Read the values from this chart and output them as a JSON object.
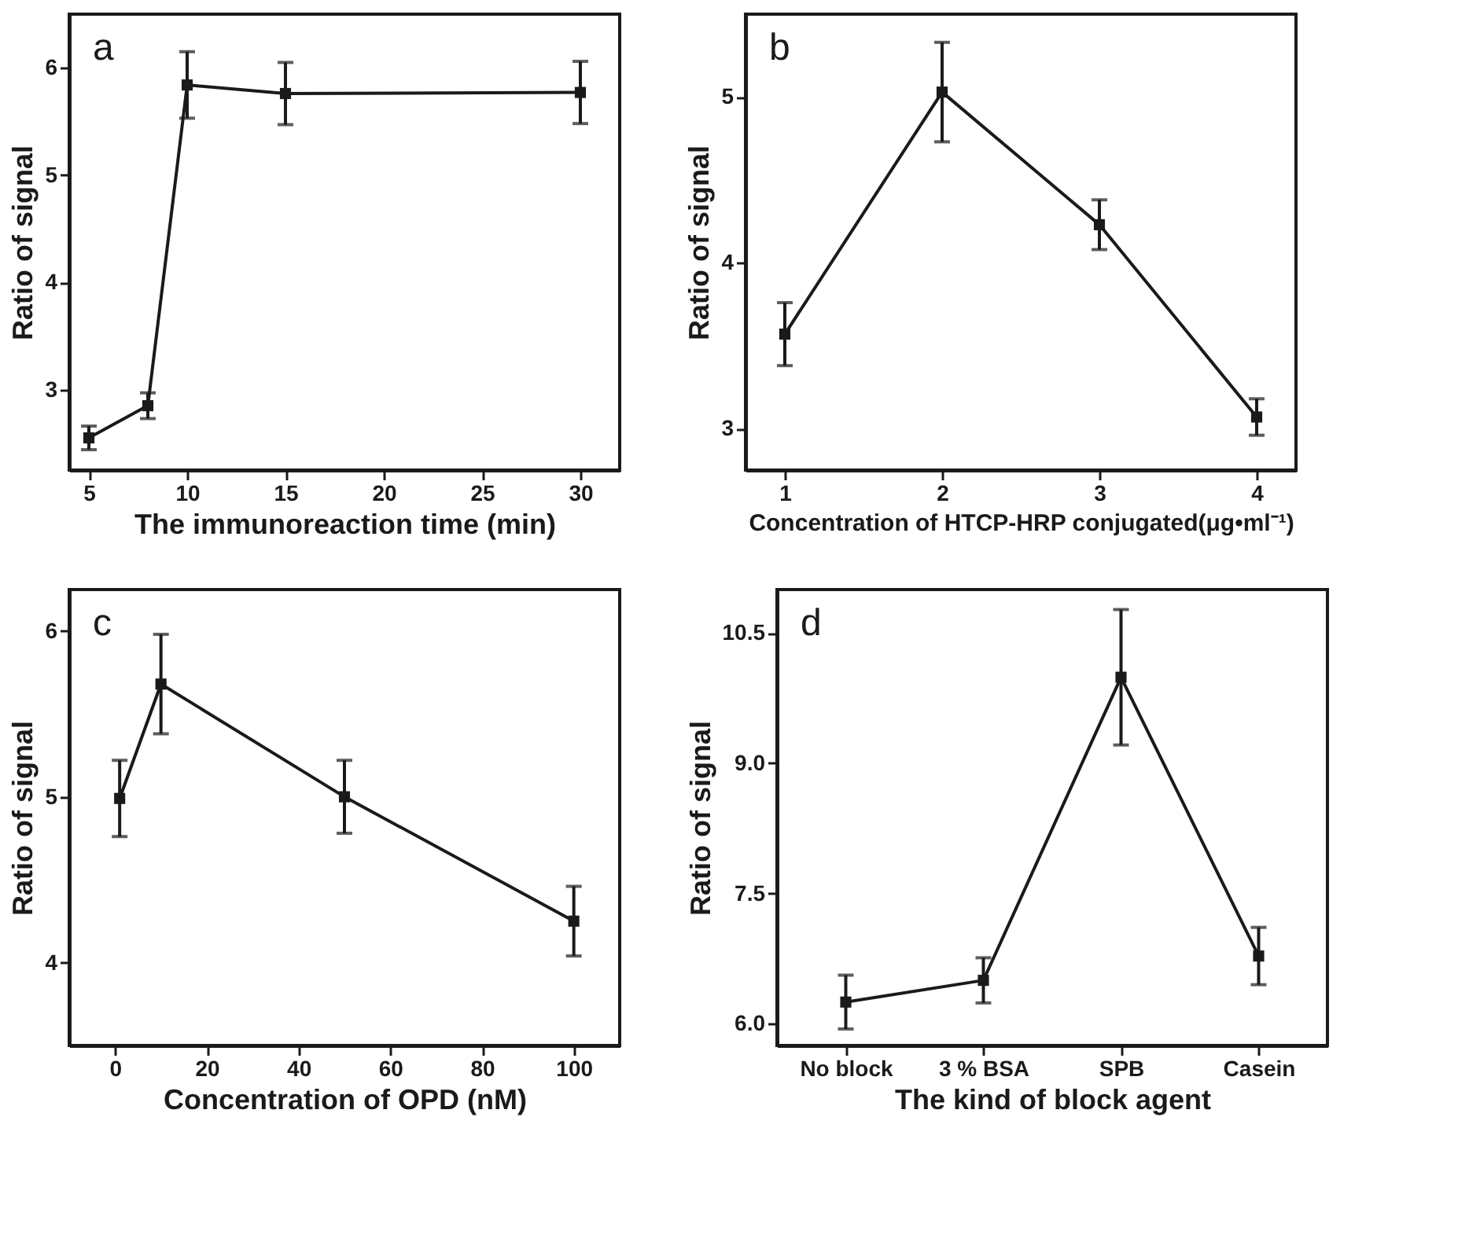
{
  "chart_data": [
    {
      "type": "line",
      "annotations": [
        "a"
      ],
      "xlabel": "The immunoreaction time (min)",
      "ylabel": "Ratio of signal",
      "x": [
        5,
        8,
        10,
        15,
        30
      ],
      "xlim": [
        4,
        32
      ],
      "xticks": [
        5,
        10,
        15,
        20,
        25,
        30
      ],
      "ylim": [
        2.25,
        6.5
      ],
      "yticks": [
        3,
        4,
        5,
        6
      ],
      "grid": false,
      "marker": "square",
      "line_style": "solid",
      "series": [
        {
          "color": "#1a1a1a",
          "values": [
            2.55,
            2.85,
            5.84,
            5.76,
            5.77
          ],
          "errors": [
            0.11,
            0.12,
            0.31,
            0.29,
            0.29
          ]
        }
      ]
    },
    {
      "type": "line",
      "annotations": [
        "b"
      ],
      "xlabel": "Concentration of HTCP-HRP conjugated(μg•ml⁻¹)",
      "ylabel": "Ratio of signal",
      "x": [
        1,
        2,
        3,
        4
      ],
      "xlim": [
        0.75,
        4.25
      ],
      "xticks": [
        1,
        2,
        3,
        4
      ],
      "ylim": [
        2.75,
        5.5
      ],
      "yticks": [
        3,
        4,
        5
      ],
      "grid": false,
      "marker": "square",
      "line_style": "solid",
      "series": [
        {
          "color": "#1a1a1a",
          "values": [
            3.57,
            5.03,
            4.23,
            3.07
          ],
          "errors": [
            0.19,
            0.3,
            0.15,
            0.11
          ]
        }
      ]
    },
    {
      "type": "line",
      "annotations": [
        "c"
      ],
      "xlabel": "Concentration of OPD (nM)",
      "ylabel": "Ratio of signal",
      "x": [
        1,
        10,
        50,
        100
      ],
      "xlim": [
        -10,
        110
      ],
      "xticks": [
        0,
        20,
        40,
        60,
        80,
        100
      ],
      "ylim": [
        3.5,
        6.25
      ],
      "yticks": [
        4,
        5,
        6
      ],
      "grid": false,
      "marker": "square",
      "line_style": "solid",
      "series": [
        {
          "color": "#1a1a1a",
          "values": [
            4.99,
            5.68,
            5.0,
            4.25
          ],
          "errors": [
            0.23,
            0.3,
            0.22,
            0.21
          ]
        }
      ]
    },
    {
      "type": "line",
      "annotations": [
        "d"
      ],
      "xlabel": "The kind of block agent",
      "ylabel": "Ratio of signal",
      "categories": [
        "No block",
        "3 % BSA",
        "SPB",
        "Casein"
      ],
      "ylim": [
        5.75,
        11.0
      ],
      "yticks": [
        {
          "value": 6,
          "label": "6.0"
        },
        7.5,
        {
          "value": 9,
          "label": "9.0"
        },
        10.5
      ],
      "grid": false,
      "marker": "square",
      "line_style": "solid",
      "series": [
        {
          "color": "#1a1a1a",
          "values": [
            6.25,
            6.5,
            9.99,
            6.78
          ],
          "errors": [
            0.31,
            0.26,
            0.78,
            0.33
          ]
        }
      ]
    }
  ]
}
